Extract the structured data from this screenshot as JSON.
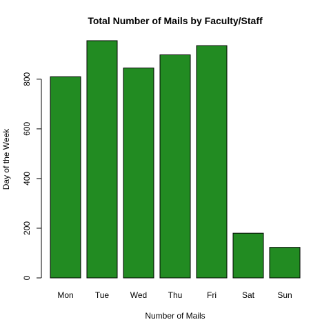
{
  "chart_data": {
    "type": "bar",
    "title": "Total Number of Mails by Faculty/Staff",
    "xlabel": "Number of Mails",
    "ylabel": "Day of the Week",
    "categories": [
      "Mon",
      "Tue",
      "Wed",
      "Thu",
      "Fri",
      "Sat",
      "Sun"
    ],
    "values": [
      810,
      955,
      845,
      898,
      935,
      180,
      123
    ],
    "yticks": [
      0,
      200,
      400,
      600,
      800
    ],
    "ylim": [
      0,
      955
    ],
    "bar_color": "#228b22",
    "grid": false,
    "legend": "none"
  }
}
